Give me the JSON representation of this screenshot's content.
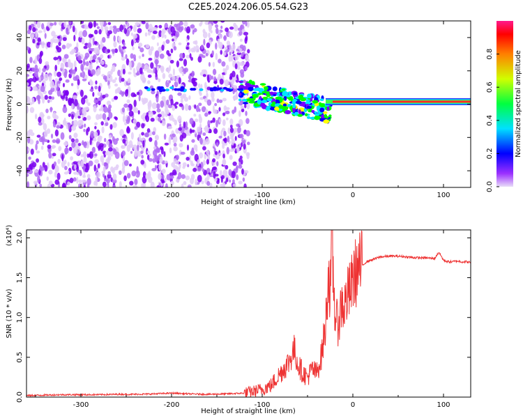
{
  "title": "C2E5.2024.206.05.54.G23",
  "chart_data": [
    {
      "type": "heatmap",
      "xlabel": "Height of straight line (km)",
      "ylabel": "Frequency (Hz)",
      "xlim": [
        -360,
        130
      ],
      "ylim": [
        -50,
        50
      ],
      "x_ticks": [
        -300,
        -200,
        -100,
        0,
        100
      ],
      "y_ticks": [
        -40,
        -20,
        0,
        20,
        40
      ],
      "colorbar": {
        "label": "Normalized spectral amplitude",
        "range": [
          0.0,
          1.0
        ],
        "ticks": [
          0.0,
          0.2,
          0.4,
          0.6,
          0.8
        ],
        "colors": [
          "#e4d3f7",
          "#7a00ff",
          "#0000ff",
          "#00e5ff",
          "#00ff00",
          "#ffff00",
          "#ff8000",
          "#ff0000",
          "#ff1493"
        ]
      },
      "features": [
        {
          "name": "noise",
          "x_range": [
            -360,
            -125
          ],
          "freq_range": [
            -50,
            50
          ],
          "amplitude": 0.1
        },
        {
          "name": "transition",
          "x_range": [
            -125,
            -25
          ],
          "freq_range": [
            -18,
            12
          ],
          "amplitude": 0.4
        },
        {
          "name": "signal",
          "x_range": [
            -30,
            130
          ],
          "freq_center": 1.5,
          "amplitude": 0.9
        }
      ]
    },
    {
      "type": "line",
      "xlabel": "Height of straight line (km)",
      "ylabel": "SNR (10 * v/v)",
      "y_scale_label": "(x10⁴)",
      "xlim": [
        -360,
        130
      ],
      "ylim": [
        0,
        2.1
      ],
      "x_ticks": [
        -300,
        -200,
        -100,
        0,
        100
      ],
      "y_ticks": [
        0.0,
        0.5,
        1.0,
        1.5,
        2.0
      ],
      "color": "#ee3333",
      "x": [
        -360,
        -340,
        -320,
        -300,
        -280,
        -260,
        -240,
        -220,
        -200,
        -180,
        -160,
        -140,
        -120,
        -110,
        -100,
        -90,
        -80,
        -70,
        -65,
        -60,
        -55,
        -50,
        -45,
        -40,
        -35,
        -30,
        -27,
        -25,
        -23,
        -20,
        -17,
        -15,
        -12,
        -10,
        -8,
        -5,
        -2,
        0,
        5,
        10,
        15,
        20,
        25,
        30,
        40,
        50,
        60,
        70,
        80,
        90,
        95,
        100,
        105,
        110,
        115,
        120,
        125,
        130
      ],
      "y": [
        0.02,
        0.025,
        0.03,
        0.03,
        0.03,
        0.035,
        0.035,
        0.04,
        0.05,
        0.04,
        0.035,
        0.04,
        0.05,
        0.07,
        0.1,
        0.15,
        0.3,
        0.45,
        0.6,
        0.4,
        0.3,
        0.25,
        0.35,
        0.3,
        0.5,
        0.9,
        1.6,
        1.3,
        1.9,
        1.1,
        0.9,
        1.0,
        1.2,
        1.1,
        1.2,
        1.3,
        1.35,
        1.5,
        1.6,
        1.65,
        1.7,
        1.72,
        1.74,
        1.76,
        1.77,
        1.77,
        1.76,
        1.75,
        1.75,
        1.74,
        1.82,
        1.72,
        1.7,
        1.7,
        1.71,
        1.7,
        1.7,
        1.69
      ]
    }
  ]
}
